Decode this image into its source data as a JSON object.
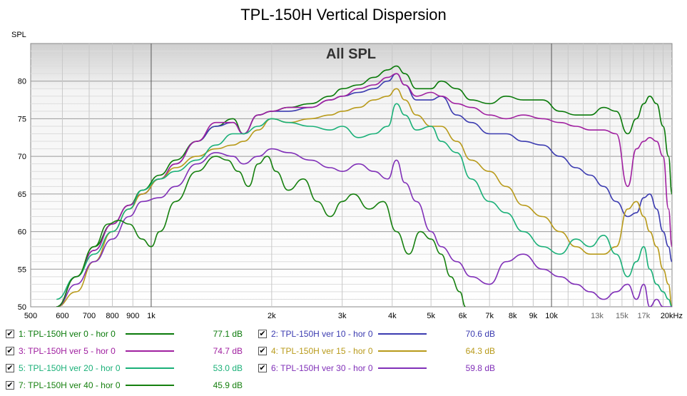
{
  "chart_data": {
    "type": "line",
    "title": "TPL-150H Vertical Dispersion",
    "annotation": "All SPL",
    "ylabel": "SPL",
    "xlabel": "",
    "xscale": "log",
    "xlim": [
      500,
      20000
    ],
    "ylim": [
      50,
      85
    ],
    "yticks": [
      50,
      55,
      60,
      65,
      70,
      75,
      80
    ],
    "xticks": [
      {
        "value": 500,
        "label": "500"
      },
      {
        "value": 600,
        "label": "600"
      },
      {
        "value": 700,
        "label": "700"
      },
      {
        "value": 800,
        "label": "800"
      },
      {
        "value": 900,
        "label": "900"
      },
      {
        "value": 1000,
        "label": "1k"
      },
      {
        "value": 2000,
        "label": "2k"
      },
      {
        "value": 3000,
        "label": "3k"
      },
      {
        "value": 4000,
        "label": "4k"
      },
      {
        "value": 5000,
        "label": "5k"
      },
      {
        "value": 6000,
        "label": "6k"
      },
      {
        "value": 7000,
        "label": "7k"
      },
      {
        "value": 8000,
        "label": "8k"
      },
      {
        "value": 9000,
        "label": "9k"
      },
      {
        "value": 10000,
        "label": "10k"
      },
      {
        "value": 13000,
        "label": "13k"
      },
      {
        "value": 15000,
        "label": "15k"
      },
      {
        "value": 17000,
        "label": "17k"
      },
      {
        "value": 20000,
        "label": "20kHz"
      }
    ],
    "grid": true,
    "legend_position": "bottom",
    "series": [
      {
        "name": "1: TPL-150H ver 0 - hor 0",
        "value": "77.1 dB",
        "color": "#0a7a0a",
        "x": [
          580,
          650,
          720,
          800,
          880,
          950,
          1050,
          1150,
          1300,
          1450,
          1600,
          1700,
          1850,
          2000,
          2200,
          2500,
          2800,
          3000,
          3300,
          3600,
          3900,
          4100,
          4300,
          4600,
          5000,
          5300,
          5800,
          6300,
          7000,
          7700,
          8500,
          9500,
          10500,
          11500,
          12500,
          13500,
          14500,
          15500,
          16300,
          17000,
          17600,
          18300,
          19000,
          19600,
          20000
        ],
        "y": [
          50,
          54,
          58,
          61,
          63.5,
          65.5,
          67.5,
          69.5,
          72,
          74,
          75,
          73,
          75.5,
          76,
          76.5,
          77,
          78,
          79,
          79.5,
          80.5,
          81.5,
          82,
          81,
          79,
          79,
          80,
          79,
          77.5,
          77,
          78,
          77.5,
          77.5,
          76,
          75.5,
          75.5,
          76.5,
          76,
          73,
          75,
          77,
          78,
          77,
          74,
          70,
          65
        ]
      },
      {
        "name": "2: TPL-150H ver 10 - hor 0",
        "value": "70.6 dB",
        "color": "#3b3bb0",
        "x": [
          580,
          650,
          720,
          800,
          880,
          950,
          1050,
          1150,
          1300,
          1450,
          1600,
          1700,
          1850,
          2000,
          2200,
          2500,
          2800,
          3000,
          3300,
          3600,
          3900,
          4100,
          4300,
          4600,
          5000,
          5300,
          5800,
          6300,
          7000,
          7700,
          8500,
          9500,
          10500,
          11500,
          12500,
          13500,
          14500,
          15500,
          16300,
          17000,
          17600,
          18300,
          19000,
          19600,
          20000
        ],
        "y": [
          50,
          54,
          57.5,
          61,
          63.5,
          65,
          67,
          69,
          72,
          74,
          74.5,
          73,
          75.5,
          76,
          76,
          76.5,
          77.5,
          78,
          78.5,
          79,
          80,
          81,
          79.5,
          77.5,
          77.5,
          78,
          75.5,
          74.5,
          73,
          73,
          72,
          71.5,
          70,
          68.5,
          67.5,
          66,
          64,
          62,
          62.5,
          64.5,
          65,
          63,
          60,
          58,
          56
        ]
      },
      {
        "name": "3: TPL-150H ver 5 - hor 0",
        "value": "74.7 dB",
        "color": "#a020a0",
        "x": [
          580,
          650,
          720,
          800,
          880,
          950,
          1050,
          1150,
          1300,
          1450,
          1600,
          1700,
          1850,
          2000,
          2200,
          2500,
          2800,
          3000,
          3300,
          3600,
          3900,
          4100,
          4300,
          4600,
          5000,
          5300,
          5800,
          6300,
          7000,
          7700,
          8500,
          9500,
          10500,
          11500,
          12500,
          13500,
          14500,
          15500,
          16300,
          17000,
          17600,
          18300,
          19000,
          19600,
          20000
        ],
        "y": [
          50,
          54,
          57.5,
          61,
          63.5,
          65,
          67,
          69,
          72,
          74.5,
          74.5,
          73,
          75.5,
          76,
          76.5,
          76.5,
          77.5,
          78,
          79,
          79.5,
          80.5,
          81,
          79.5,
          78,
          78.5,
          78,
          77,
          76.5,
          75.5,
          75,
          75.5,
          75,
          74.5,
          74,
          73.5,
          73.5,
          73,
          66,
          71,
          72,
          72.5,
          72,
          70,
          63,
          58
        ]
      },
      {
        "name": "4: TPL-150H ver 15 - hor 0",
        "value": "64.3 dB",
        "color": "#b89a1a",
        "x": [
          580,
          650,
          720,
          800,
          880,
          950,
          1050,
          1150,
          1300,
          1450,
          1600,
          1700,
          1850,
          2000,
          2200,
          2500,
          2800,
          3000,
          3300,
          3600,
          3900,
          4100,
          4300,
          4600,
          5000,
          5300,
          5800,
          6300,
          7000,
          7700,
          8500,
          9500,
          10500,
          11500,
          12500,
          13500,
          14500,
          15500,
          16300,
          17000,
          17600,
          18300,
          19000,
          19600,
          20000
        ],
        "y": [
          50,
          52,
          56,
          60,
          63,
          65,
          67,
          68.5,
          70,
          71,
          71.5,
          72,
          73.5,
          75,
          74.5,
          75,
          75.5,
          76,
          76.5,
          77.5,
          78,
          79,
          77.5,
          75.5,
          74,
          74,
          72,
          69.5,
          68,
          66,
          63.5,
          62,
          60,
          58,
          57,
          57,
          58,
          63,
          64,
          62,
          60,
          58,
          55,
          53,
          50
        ]
      },
      {
        "name": "5: TPL-150H ver 20 - hor 0",
        "value": "53.0 dB",
        "color": "#1ab078",
        "x": [
          580,
          650,
          720,
          800,
          880,
          950,
          1050,
          1150,
          1300,
          1450,
          1600,
          1700,
          1850,
          2000,
          2200,
          2500,
          2800,
          3000,
          3300,
          3600,
          3900,
          4100,
          4300,
          4600,
          5000,
          5300,
          5800,
          6300,
          7000,
          7700,
          8500,
          9500,
          10500,
          11500,
          12500,
          13500,
          14500,
          15500,
          16300,
          17000,
          17600,
          18300,
          19000,
          19600,
          20000
        ],
        "y": [
          51,
          54,
          57,
          60,
          63,
          65.5,
          67,
          68,
          69.5,
          71.5,
          73,
          73,
          74,
          75,
          74.5,
          74,
          73.5,
          74,
          72.5,
          73,
          74,
          77,
          75.5,
          73.5,
          74,
          72,
          70.5,
          67,
          64,
          62.5,
          60,
          58,
          57,
          59,
          58,
          59.5,
          57,
          54,
          56,
          58,
          55,
          53,
          52,
          51,
          50
        ]
      },
      {
        "name": "6: TPL-150H ver 30 - hor 0",
        "value": "59.8 dB",
        "color": "#8030b8",
        "x": [
          580,
          650,
          720,
          800,
          880,
          950,
          1050,
          1150,
          1300,
          1450,
          1600,
          1700,
          1850,
          2000,
          2200,
          2500,
          2800,
          3000,
          3300,
          3600,
          3900,
          4100,
          4300,
          4600,
          5000,
          5300,
          5800,
          6300,
          7000,
          7700,
          8500,
          9500,
          10500,
          11500,
          12500,
          13500,
          14500,
          15500,
          16300,
          17000,
          17600,
          18300,
          19000,
          19600,
          20000
        ],
        "y": [
          50,
          53,
          56,
          59,
          62,
          64,
          64.5,
          66,
          69,
          70.5,
          70,
          69,
          70,
          71,
          70.5,
          69.5,
          68.5,
          68,
          69,
          68,
          67,
          69.5,
          66.5,
          64,
          60,
          58,
          56,
          54,
          53,
          56,
          57,
          55,
          54,
          53,
          52,
          51,
          52,
          53,
          51,
          53,
          50,
          51,
          50,
          50,
          50
        ]
      },
      {
        "name": "7: TPL-150H ver 40 - hor 0",
        "value": "45.9 dB",
        "color": "#16800f",
        "x": [
          580,
          650,
          720,
          780,
          830,
          880,
          950,
          1000,
          1050,
          1150,
          1300,
          1450,
          1550,
          1650,
          1750,
          1850,
          1950,
          2050,
          2200,
          2400,
          2600,
          2800,
          3000,
          3200,
          3500,
          3800,
          4100,
          4400,
          4700,
          5000,
          5300,
          5600,
          5900,
          6100
        ],
        "y": [
          50,
          54,
          58,
          61,
          61.5,
          61,
          59,
          58,
          60,
          64,
          68,
          70,
          69.5,
          68,
          66,
          69,
          70,
          68,
          65.5,
          67,
          64,
          62,
          64,
          65,
          63,
          64,
          60,
          57,
          60,
          59,
          57,
          54,
          52,
          50
        ]
      }
    ]
  }
}
